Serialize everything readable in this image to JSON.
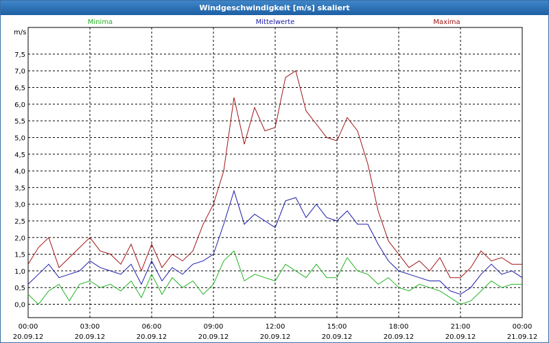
{
  "window": {
    "title": "Windgeschwindigkeit [m/s] skaliert"
  },
  "colors": {
    "min": "#22b322",
    "mean": "#1a1aa8",
    "max": "#a01515",
    "grid": "#000000",
    "titlebar": "#2a6fb5"
  },
  "chart_data": {
    "type": "line",
    "title": "Windgeschwindigkeit [m/s] skaliert",
    "ylabel": "m/s",
    "ylim": [
      -0.4,
      8.3
    ],
    "yticks": [
      "0,0",
      "0,5",
      "1,0",
      "1,5",
      "2,0",
      "2,5",
      "3,0",
      "3,5",
      "4,0",
      "4,5",
      "5,0",
      "5,5",
      "6,0",
      "6,5",
      "7,0",
      "7,5"
    ],
    "xticks": [
      {
        "time": "00:00",
        "date": "20.09.12"
      },
      {
        "time": "03:00",
        "date": "20.09.12"
      },
      {
        "time": "06:00",
        "date": "20.09.12"
      },
      {
        "time": "09:00",
        "date": "20.09.12"
      },
      {
        "time": "12:00",
        "date": "20.09.12"
      },
      {
        "time": "15:00",
        "date": "20.09.12"
      },
      {
        "time": "18:00",
        "date": "20.09.12"
      },
      {
        "time": "21:00",
        "date": "20.09.12"
      },
      {
        "time": "00:00",
        "date": "21.09.12"
      }
    ],
    "x_hours": [
      0,
      0.5,
      1,
      1.5,
      2,
      2.5,
      3,
      3.5,
      4,
      4.5,
      5,
      5.5,
      6,
      6.5,
      7,
      7.5,
      8,
      8.5,
      9,
      9.5,
      10,
      10.5,
      11,
      11.5,
      12,
      12.5,
      13,
      13.5,
      14,
      14.5,
      15,
      15.5,
      16,
      16.5,
      17,
      17.5,
      18,
      18.5,
      19,
      19.5,
      20,
      20.5,
      21,
      21.5,
      22,
      22.5,
      23,
      23.5,
      24
    ],
    "series": [
      {
        "name": "Minima",
        "values": [
          0.3,
          0.0,
          0.4,
          0.6,
          0.1,
          0.6,
          0.7,
          0.5,
          0.6,
          0.4,
          0.7,
          0.2,
          0.9,
          0.3,
          0.8,
          0.5,
          0.7,
          0.3,
          0.6,
          1.3,
          1.6,
          0.7,
          0.9,
          0.8,
          0.7,
          1.2,
          1.0,
          0.8,
          1.2,
          0.8,
          0.8,
          1.4,
          1.0,
          0.9,
          0.6,
          0.8,
          0.5,
          0.4,
          0.6,
          0.5,
          0.4,
          0.2,
          0.0,
          0.1,
          0.4,
          0.7,
          0.5,
          0.6,
          0.6
        ]
      },
      {
        "name": "Mittelwerte",
        "values": [
          0.6,
          0.9,
          1.2,
          0.8,
          0.9,
          1.0,
          1.3,
          1.1,
          1.0,
          0.9,
          1.2,
          0.6,
          1.3,
          0.7,
          1.1,
          0.9,
          1.2,
          1.3,
          1.5,
          2.4,
          3.4,
          2.4,
          2.7,
          2.5,
          2.3,
          3.1,
          3.2,
          2.6,
          3.0,
          2.6,
          2.5,
          2.8,
          2.4,
          2.4,
          1.8,
          1.3,
          1.0,
          0.9,
          0.8,
          0.7,
          0.7,
          0.4,
          0.3,
          0.5,
          0.9,
          1.2,
          0.9,
          1.0,
          0.8
        ]
      },
      {
        "name": "Maxima",
        "values": [
          1.2,
          1.7,
          2.0,
          1.1,
          1.4,
          1.7,
          2.0,
          1.6,
          1.5,
          1.2,
          1.8,
          1.0,
          1.8,
          1.1,
          1.5,
          1.3,
          1.6,
          2.4,
          3.0,
          4.0,
          6.2,
          4.8,
          5.9,
          5.2,
          5.3,
          6.8,
          7.0,
          5.8,
          5.4,
          5.0,
          4.9,
          5.6,
          5.2,
          4.2,
          2.8,
          1.9,
          1.5,
          1.1,
          1.3,
          1.0,
          1.4,
          0.8,
          0.8,
          1.1,
          1.6,
          1.3,
          1.4,
          1.2,
          1.2
        ]
      }
    ]
  }
}
